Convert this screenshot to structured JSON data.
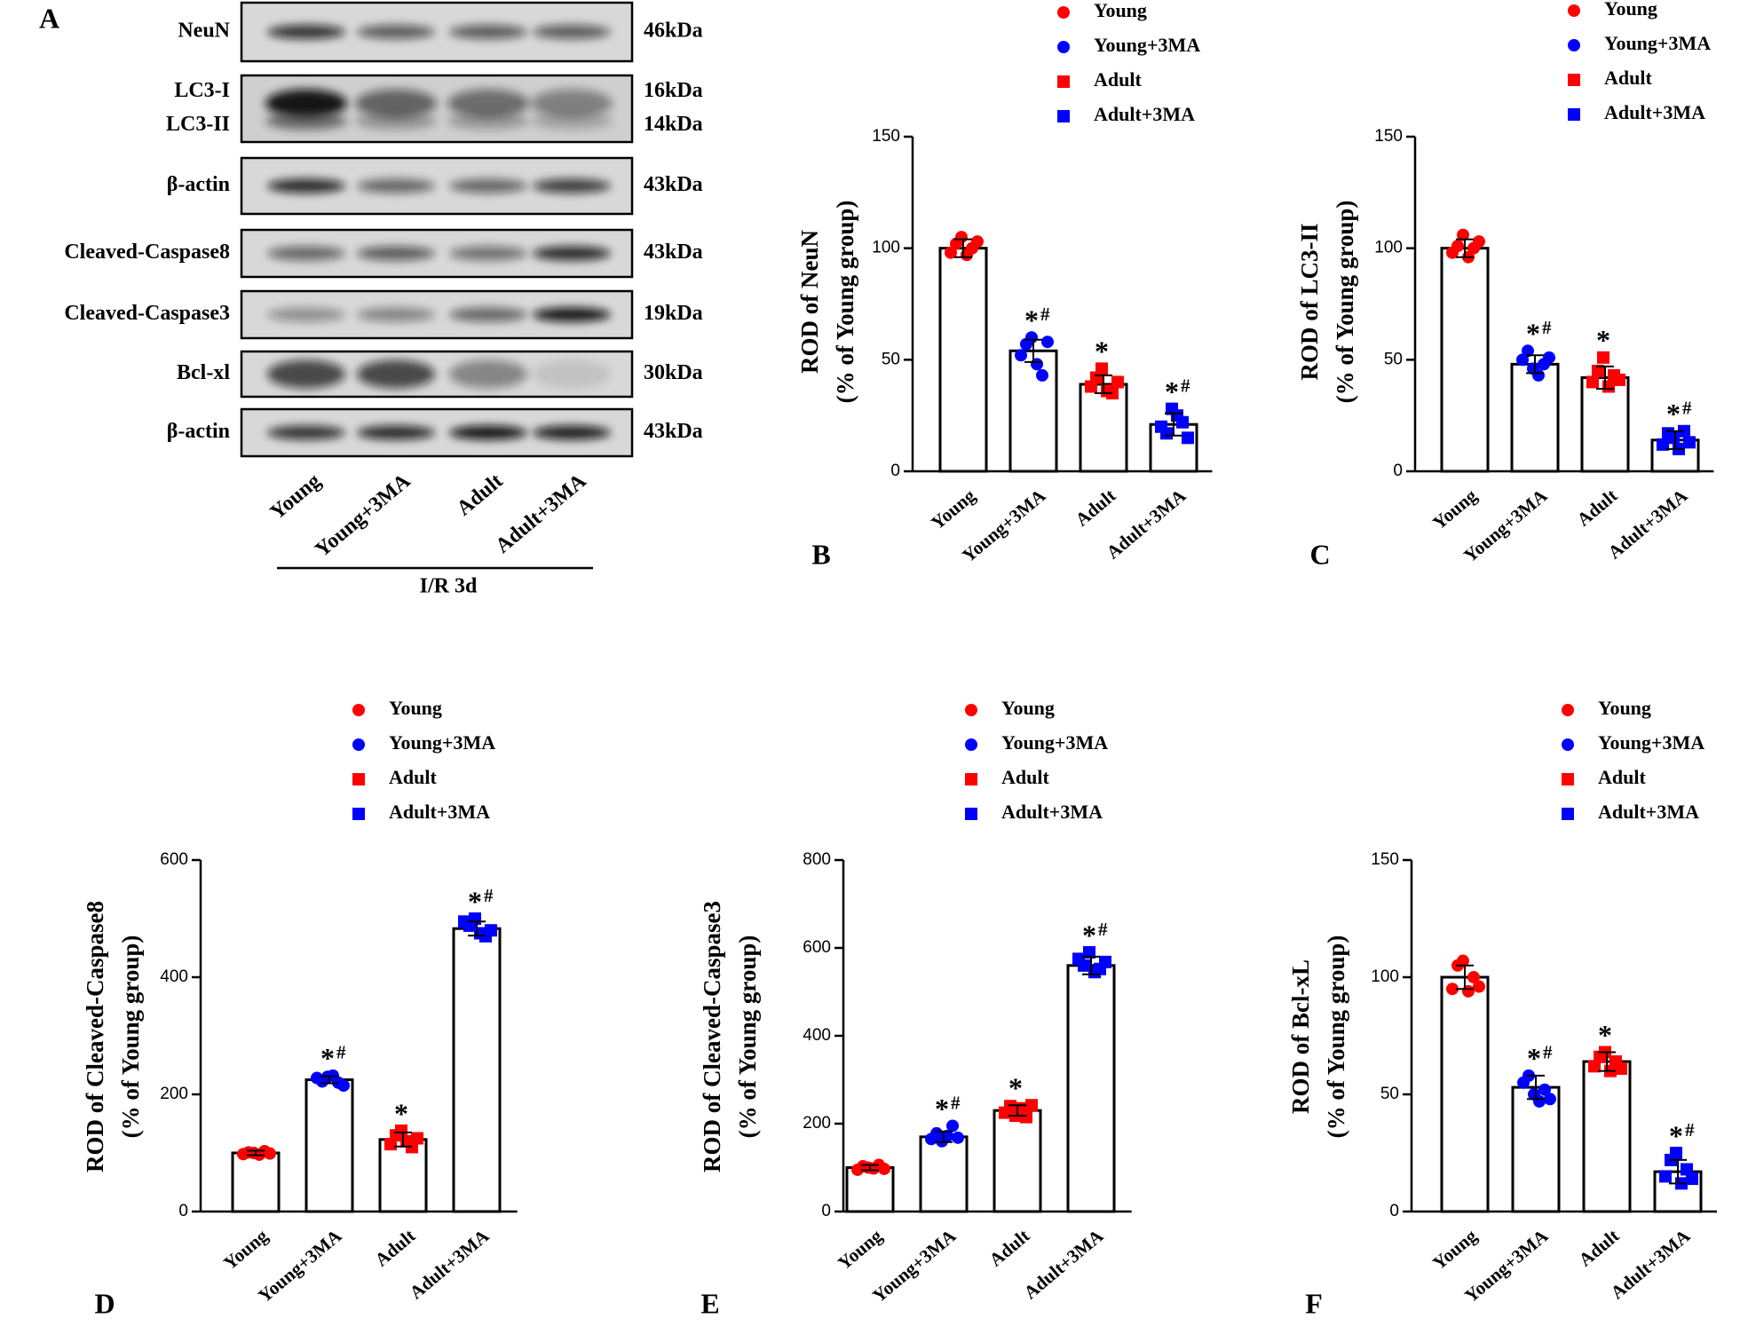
{
  "panel_a": {
    "label": "A",
    "rows": [
      {
        "labels": [
          "NeuN"
        ],
        "kda": [
          "46kDa"
        ]
      },
      {
        "labels": [
          "LC3-I",
          "LC3-II"
        ],
        "kda": [
          "16kDa",
          "14kDa"
        ]
      },
      {
        "labels": [
          "β-actin"
        ],
        "kda": [
          "43kDa"
        ]
      },
      {
        "labels": [
          "Cleaved-Caspase8"
        ],
        "kda": [
          "43kDa"
        ]
      },
      {
        "labels": [
          "Cleaved-Caspase3"
        ],
        "kda": [
          "19kDa"
        ]
      },
      {
        "labels": [
          "Bcl-xl"
        ],
        "kda": [
          "30kDa"
        ]
      },
      {
        "labels": [
          "β-actin"
        ],
        "kda": [
          "43kDa"
        ]
      }
    ],
    "lanes": [
      "Young",
      "Young+3MA",
      "Adult",
      "Adult+3MA"
    ],
    "condition": "I/R  3d"
  },
  "chart_data": [
    {
      "type": "bar",
      "panel": "B",
      "ylabel": [
        "ROD of NeuN",
        "(% of Young group)"
      ],
      "categories": [
        "Young",
        "Young+3MA",
        "Adult",
        "Adult+3MA"
      ],
      "values": [
        100,
        54,
        39,
        21
      ],
      "errors": [
        4,
        5,
        4,
        5
      ],
      "annotations": [
        null,
        {
          "text": "*",
          "sup": "#"
        },
        {
          "text": "*"
        },
        {
          "text": "*",
          "sup": "#"
        }
      ],
      "series": [
        {
          "name": "Young",
          "color": "#ff0000",
          "marker": "circle",
          "points": [
            98,
            102,
            105,
            97,
            100,
            103
          ]
        },
        {
          "name": "Young+3MA",
          "color": "#0000ff",
          "marker": "circle",
          "points": [
            52,
            57,
            60,
            48,
            43,
            58
          ]
        },
        {
          "name": "Adult",
          "color": "#ff0000",
          "marker": "square",
          "points": [
            38,
            42,
            46,
            36,
            35,
            40
          ]
        },
        {
          "name": "Adult+3MA",
          "color": "#0000ff",
          "marker": "square",
          "points": [
            20,
            17,
            28,
            25,
            22,
            15
          ]
        }
      ],
      "ylim": [
        0,
        150
      ],
      "yticks": [
        0,
        50,
        100,
        150
      ]
    },
    {
      "type": "bar",
      "panel": "C",
      "ylabel": [
        "ROD of LC3-II",
        "(% of Young group)"
      ],
      "categories": [
        "Young",
        "Young+3MA",
        "Adult",
        "Adult+3MA"
      ],
      "values": [
        100,
        48,
        42,
        14
      ],
      "errors": [
        4,
        4,
        5,
        4
      ],
      "annotations": [
        null,
        {
          "text": "*",
          "sup": "#"
        },
        {
          "text": "*"
        },
        {
          "text": "*",
          "sup": "#"
        }
      ],
      "series": [
        {
          "name": "Young",
          "color": "#ff0000",
          "marker": "circle",
          "points": [
            98,
            101,
            106,
            96,
            100,
            103
          ]
        },
        {
          "name": "Young+3MA",
          "color": "#0000ff",
          "marker": "circle",
          "points": [
            50,
            54,
            46,
            43,
            48,
            51
          ]
        },
        {
          "name": "Adult",
          "color": "#ff0000",
          "marker": "square",
          "points": [
            40,
            45,
            51,
            38,
            43,
            41
          ]
        },
        {
          "name": "Adult+3MA",
          "color": "#0000ff",
          "marker": "square",
          "points": [
            12,
            17,
            15,
            10,
            18,
            13
          ]
        }
      ],
      "ylim": [
        0,
        150
      ],
      "yticks": [
        0,
        50,
        100,
        150
      ]
    },
    {
      "type": "bar",
      "panel": "D",
      "ylabel": [
        "ROD of Cleaved-Caspase8",
        "(% of Young group)"
      ],
      "categories": [
        "Young",
        "Young+3MA",
        "Adult",
        "Adult+3MA"
      ],
      "values": [
        100,
        225,
        123,
        483
      ],
      "errors": [
        4,
        6,
        12,
        12
      ],
      "annotations": [
        null,
        {
          "text": "*",
          "sup": "#"
        },
        {
          "text": "*"
        },
        {
          "text": "*",
          "sup": "#"
        }
      ],
      "series": [
        {
          "name": "Young",
          "color": "#ff0000",
          "marker": "circle",
          "points": [
            98,
            101,
            100,
            97,
            103,
            99
          ]
        },
        {
          "name": "Young+3MA",
          "color": "#0000ff",
          "marker": "circle",
          "points": [
            228,
            222,
            230,
            232,
            220,
            215
          ]
        },
        {
          "name": "Adult",
          "color": "#ff0000",
          "marker": "square",
          "points": [
            115,
            130,
            138,
            120,
            110,
            125
          ]
        },
        {
          "name": "Adult+3MA",
          "color": "#0000ff",
          "marker": "square",
          "points": [
            495,
            488,
            500,
            475,
            470,
            480
          ]
        }
      ],
      "ylim": [
        0,
        600
      ],
      "yticks": [
        0,
        200,
        400,
        600
      ]
    },
    {
      "type": "bar",
      "panel": "E",
      "ylabel": [
        "ROD of Cleaved-Caspase3",
        "(% of Young group)"
      ],
      "categories": [
        "Young",
        "Young+3MA",
        "Adult",
        "Adult+3MA"
      ],
      "values": [
        100,
        170,
        230,
        560
      ],
      "errors": [
        6,
        12,
        12,
        20
      ],
      "annotations": [
        null,
        {
          "text": "*",
          "sup": "#"
        },
        {
          "text": "*"
        },
        {
          "text": "*",
          "sup": "#"
        }
      ],
      "series": [
        {
          "name": "Young",
          "color": "#ff0000",
          "marker": "circle",
          "points": [
            95,
            103,
            100,
            98,
            106,
            97
          ]
        },
        {
          "name": "Young+3MA",
          "color": "#0000ff",
          "marker": "circle",
          "points": [
            165,
            178,
            160,
            172,
            195,
            168
          ]
        },
        {
          "name": "Adult",
          "color": "#ff0000",
          "marker": "square",
          "points": [
            225,
            240,
            218,
            235,
            215,
            242
          ]
        },
        {
          "name": "Adult+3MA",
          "color": "#0000ff",
          "marker": "square",
          "points": [
            575,
            560,
            590,
            545,
            552,
            568
          ]
        }
      ],
      "ylim": [
        0,
        800
      ],
      "yticks": [
        0,
        200,
        400,
        600,
        800
      ]
    },
    {
      "type": "bar",
      "panel": "F",
      "ylabel": [
        "ROD of Bcl-xL",
        "(% of Young group)"
      ],
      "categories": [
        "Young",
        "Young+3MA",
        "Adult",
        "Adult+3MA"
      ],
      "values": [
        100,
        53,
        64,
        17
      ],
      "errors": [
        5,
        5,
        4,
        5
      ],
      "annotations": [
        null,
        {
          "text": "*",
          "sup": "#"
        },
        {
          "text": "*"
        },
        {
          "text": "*",
          "sup": "#"
        }
      ],
      "series": [
        {
          "name": "Young",
          "color": "#ff0000",
          "marker": "circle",
          "points": [
            95,
            105,
            107,
            94,
            100,
            96
          ]
        },
        {
          "name": "Young+3MA",
          "color": "#0000ff",
          "marker": "circle",
          "points": [
            55,
            58,
            50,
            47,
            52,
            48
          ]
        },
        {
          "name": "Adult",
          "color": "#ff0000",
          "marker": "square",
          "points": [
            62,
            66,
            68,
            60,
            64,
            61
          ]
        },
        {
          "name": "Adult+3MA",
          "color": "#0000ff",
          "marker": "square",
          "points": [
            15,
            22,
            25,
            12,
            18,
            14
          ]
        }
      ],
      "ylim": [
        0,
        150
      ],
      "yticks": [
        0,
        50,
        100,
        150
      ]
    }
  ]
}
